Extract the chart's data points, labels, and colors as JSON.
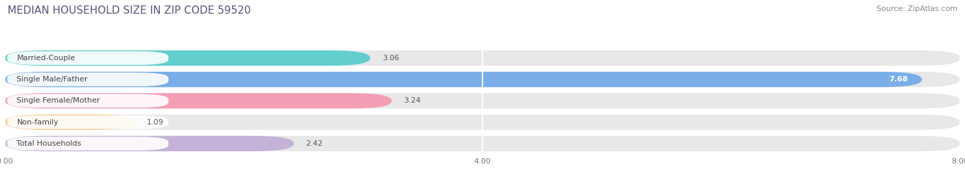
{
  "title": "MEDIAN HOUSEHOLD SIZE IN ZIP CODE 59520",
  "source": "Source: ZipAtlas.com",
  "categories": [
    "Married-Couple",
    "Single Male/Father",
    "Single Female/Mother",
    "Non-family",
    "Total Households"
  ],
  "values": [
    3.06,
    7.68,
    3.24,
    1.09,
    2.42
  ],
  "bar_colors": [
    "#62cece",
    "#79aee8",
    "#f49eb5",
    "#f5c98a",
    "#c4b2d9"
  ],
  "bar_bg_colors": [
    "#eeeeee",
    "#eeeeee",
    "#eeeeee",
    "#eeeeee",
    "#eeeeee"
  ],
  "xlim": [
    0,
    8.0
  ],
  "xticks": [
    0.0,
    4.0,
    8.0
  ],
  "xtick_labels": [
    "0.00",
    "4.00",
    "8.00"
  ],
  "label_fontsize": 8,
  "value_fontsize": 8,
  "title_fontsize": 11,
  "source_fontsize": 8,
  "figure_bg": "#ffffff",
  "plot_bg": "#f0f0f0"
}
